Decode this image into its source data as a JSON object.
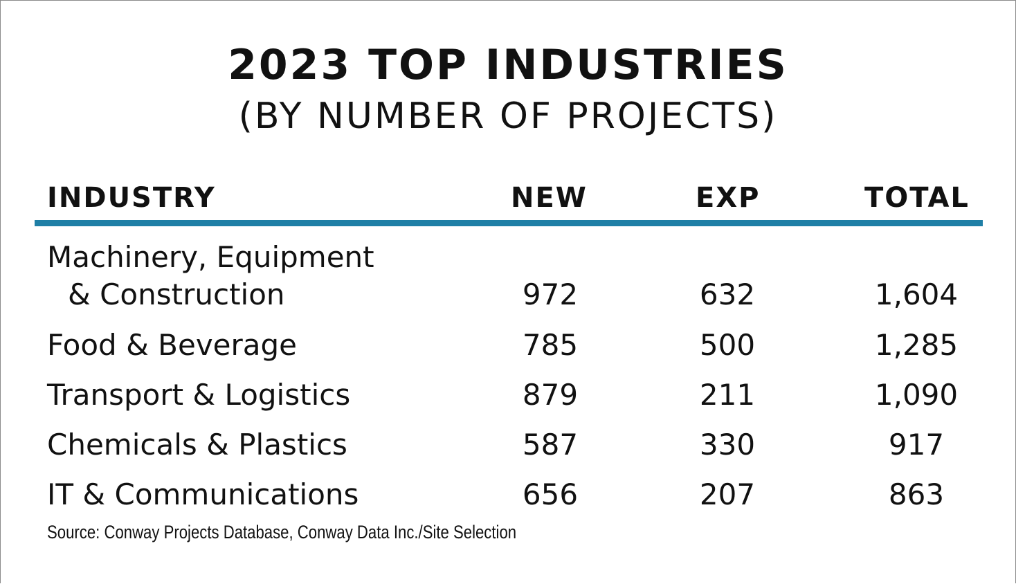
{
  "chart_data": {
    "type": "table",
    "title": "2023 TOP INDUSTRIES",
    "subtitle": "(BY NUMBER OF PROJECTS)",
    "columns": [
      "INDUSTRY",
      "NEW",
      "EXP",
      "TOTAL"
    ],
    "rows": [
      {
        "industry_line1": "Machinery, Equipment",
        "industry_line2": "& Construction",
        "new": "972",
        "exp": "632",
        "total": "1,604"
      },
      {
        "industry_line1": "Food & Beverage",
        "new": "785",
        "exp": "500",
        "total": "1,285"
      },
      {
        "industry_line1": "Transport & Logistics",
        "new": "879",
        "exp": "211",
        "total": "1,090"
      },
      {
        "industry_line1": "Chemicals & Plastics",
        "new": "587",
        "exp": "330",
        "total": "917"
      },
      {
        "industry_line1": "IT & Communications",
        "new": "656",
        "exp": "207",
        "total": "863"
      }
    ],
    "source": "Source: Conway Projects Database, Conway Data Inc./Site Selection"
  },
  "colors": {
    "accent_rule": "#1f7fa6",
    "text": "#111111",
    "background": "#ffffff"
  }
}
